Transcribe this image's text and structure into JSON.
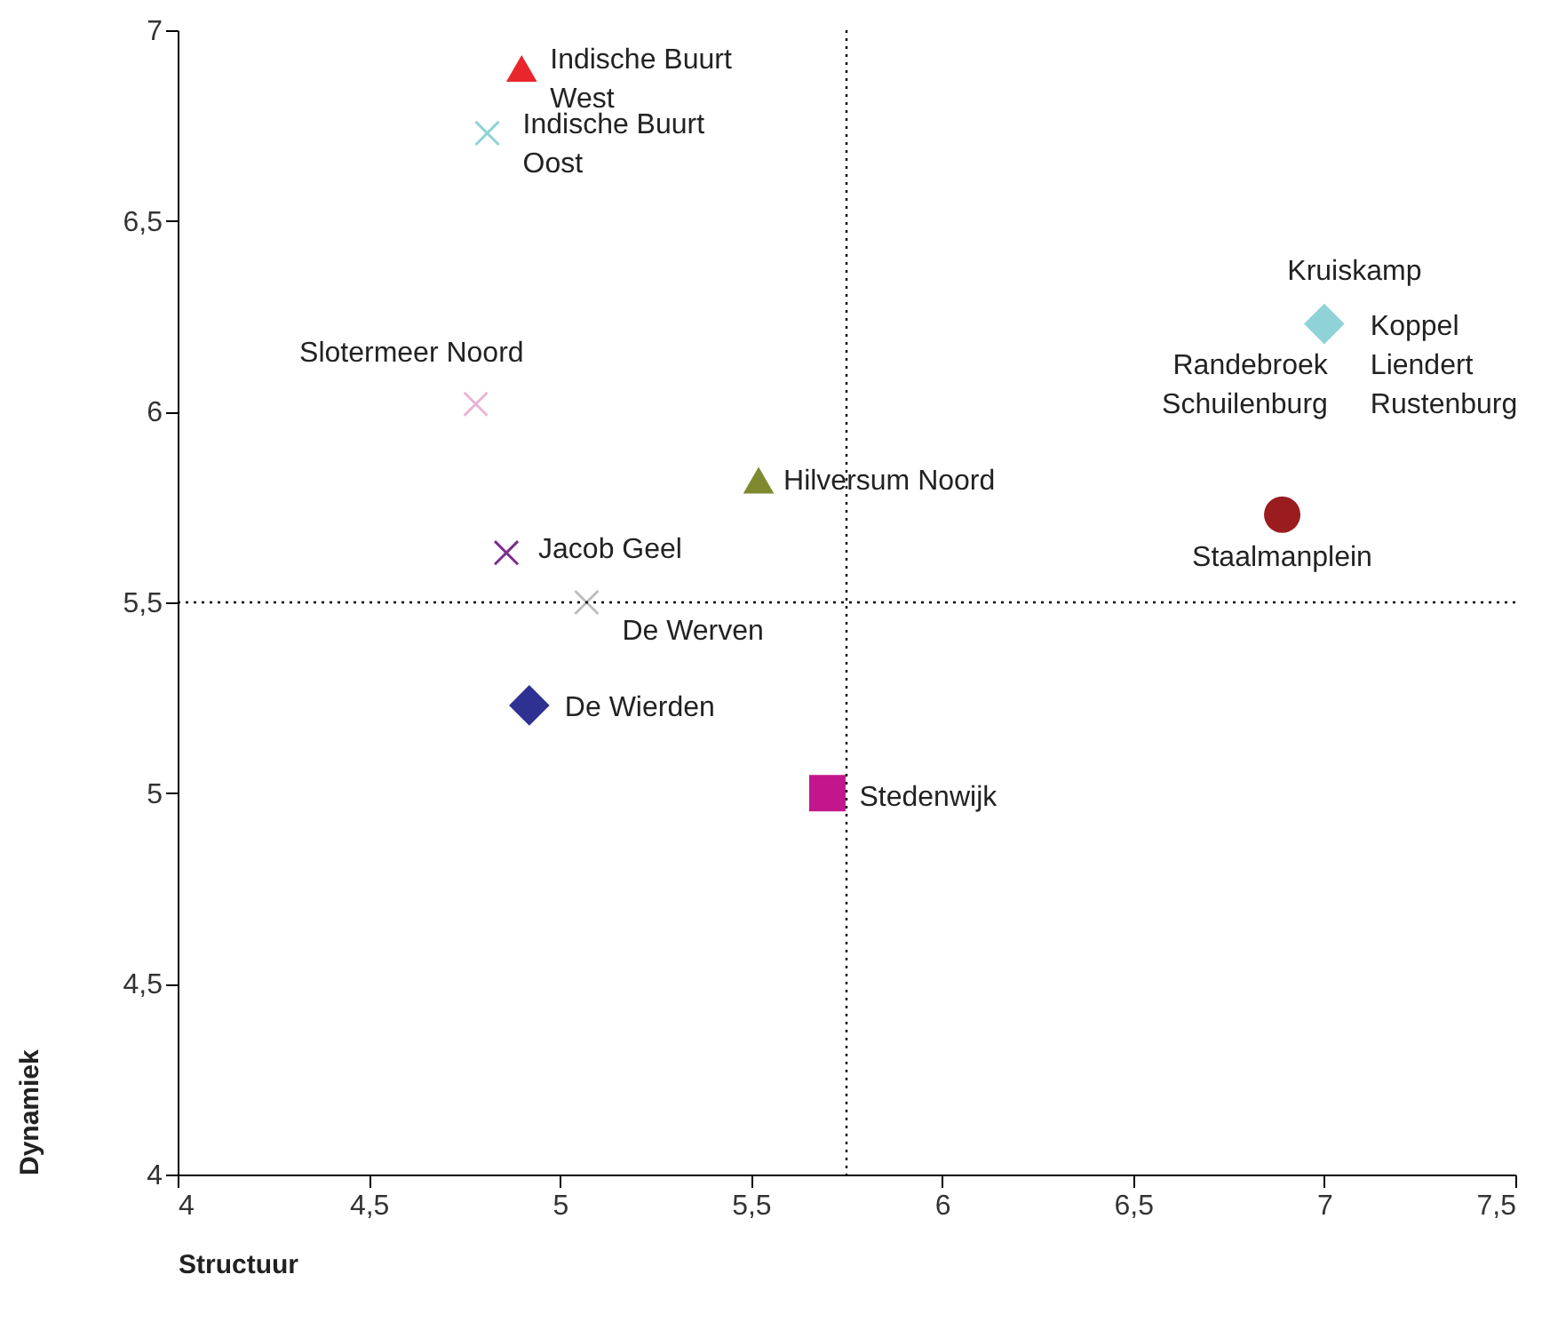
{
  "chart_data": {
    "type": "scatter",
    "xlabel": "Structuur",
    "ylabel": "Dynamiek",
    "xlim": [
      4,
      7.5
    ],
    "xticks": [
      4,
      {
        "value": 4.5,
        "label": "4,5"
      },
      5,
      {
        "value": 5.5,
        "label": "5,5"
      },
      6,
      {
        "value": 6.5,
        "label": "6,5"
      },
      7,
      {
        "value": 7.5,
        "label": "7,5"
      }
    ],
    "ylim": [
      4,
      7
    ],
    "yticks": [
      4,
      {
        "value": 4.5,
        "label": "4,5"
      },
      5,
      {
        "value": 5.5,
        "label": "5,5"
      },
      6,
      {
        "value": 6.5,
        "label": "6,5"
      },
      7
    ],
    "grid": false,
    "series": [
      {
        "name": "Indische Buurt West",
        "color": "#e8262b",
        "marker": "triangle",
        "x": [
          4.9
        ],
        "values": [
          6.9
        ]
      },
      {
        "name": "Indische Buurt Oost",
        "color": "#8ed3d8",
        "marker": "cross",
        "x": [
          4.81
        ],
        "values": [
          6.73
        ]
      },
      {
        "name": "Slotermeer Noord",
        "color": "#e8b4d8",
        "marker": "cross",
        "x": [
          4.78
        ],
        "values": [
          6.02
        ]
      },
      {
        "name": "Hilversum Noord",
        "color": "#7f8a30",
        "marker": "triangle",
        "x": [
          5.52
        ],
        "values": [
          5.82
        ]
      },
      {
        "name": "Jacob Geel",
        "color": "#7b2d8e",
        "marker": "cross",
        "x": [
          4.86
        ],
        "values": [
          5.63
        ]
      },
      {
        "name": "De Werven",
        "color": "#bdbdbd",
        "marker": "cross",
        "x": [
          5.07
        ],
        "values": [
          5.5
        ]
      },
      {
        "name": "De Wierden",
        "color": "#2e3192",
        "marker": "diamond",
        "x": [
          4.92
        ],
        "values": [
          5.23
        ]
      },
      {
        "name": "Stedenwijk",
        "color": "#c4168c",
        "marker": "square",
        "x": [
          5.7
        ],
        "values": [
          5.0
        ]
      },
      {
        "name": "Staalmanplein",
        "color": "#9b1c1f",
        "marker": "circle",
        "x": [
          6.89
        ],
        "values": [
          5.73
        ]
      },
      {
        "name": "Kruiskamp",
        "color": "#8fd3d8",
        "marker": "diamond",
        "x": [
          7.0
        ],
        "values": [
          6.23
        ]
      }
    ],
    "annotations": [
      {
        "text": "Koppel Liendert Rustenburg",
        "x": 7.0,
        "y": 6.23
      },
      {
        "text": "Randebroek Schuilenburg",
        "x": 7.0,
        "y": 6.23
      }
    ],
    "ref_lines": [
      {
        "axis": "x",
        "value": 5.75,
        "line_style": "dotted"
      },
      {
        "axis": "y",
        "value": 5.5,
        "line_style": "dotted"
      }
    ]
  }
}
